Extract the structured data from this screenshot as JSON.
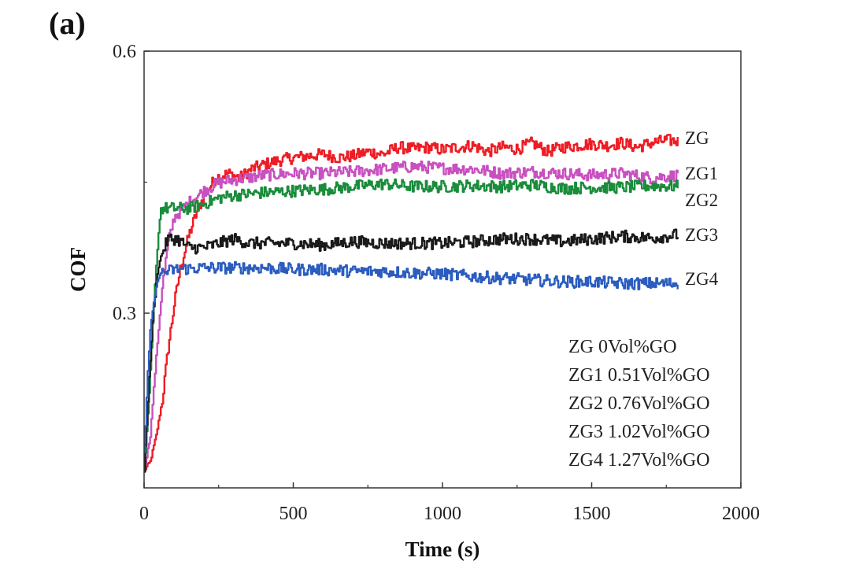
{
  "panel_label": "(a)",
  "chart_data": {
    "type": "line",
    "title": "",
    "xlabel": "Time (s)",
    "ylabel": "COF",
    "xlim": [
      0,
      2000
    ],
    "ylim": [
      0.1,
      0.6
    ],
    "x_ticks": [
      0,
      500,
      1000,
      1500,
      2000
    ],
    "x_tick_labels": [
      "0",
      "500",
      "1000",
      "1500",
      "2000"
    ],
    "y_ticks": [
      0.3,
      0.6
    ],
    "y_tick_labels": [
      "0.3",
      "0.6"
    ],
    "grid": false,
    "series": [
      {
        "name": "ZG",
        "color": "#ee1c24",
        "points": [
          [
            0,
            0.12
          ],
          [
            20,
            0.13
          ],
          [
            40,
            0.16
          ],
          [
            60,
            0.2
          ],
          [
            80,
            0.26
          ],
          [
            100,
            0.31
          ],
          [
            120,
            0.35
          ],
          [
            150,
            0.39
          ],
          [
            180,
            0.42
          ],
          [
            210,
            0.44
          ],
          [
            240,
            0.455
          ],
          [
            280,
            0.46
          ],
          [
            320,
            0.455
          ],
          [
            360,
            0.465
          ],
          [
            400,
            0.47
          ],
          [
            450,
            0.475
          ],
          [
            500,
            0.478
          ],
          [
            550,
            0.48
          ],
          [
            600,
            0.482
          ],
          [
            650,
            0.478
          ],
          [
            700,
            0.48
          ],
          [
            750,
            0.485
          ],
          [
            800,
            0.482
          ],
          [
            850,
            0.49
          ],
          [
            900,
            0.488
          ],
          [
            950,
            0.49
          ],
          [
            1000,
            0.487
          ],
          [
            1050,
            0.49
          ],
          [
            1100,
            0.492
          ],
          [
            1150,
            0.485
          ],
          [
            1200,
            0.49
          ],
          [
            1250,
            0.488
          ],
          [
            1300,
            0.495
          ],
          [
            1350,
            0.485
          ],
          [
            1400,
            0.49
          ],
          [
            1450,
            0.492
          ],
          [
            1500,
            0.494
          ],
          [
            1550,
            0.492
          ],
          [
            1600,
            0.495
          ],
          [
            1650,
            0.49
          ],
          [
            1700,
            0.495
          ],
          [
            1750,
            0.498
          ],
          [
            1790,
            0.497
          ]
        ]
      },
      {
        "name": "ZG1",
        "color": "#c850c0",
        "points": [
          [
            0,
            0.12
          ],
          [
            20,
            0.16
          ],
          [
            40,
            0.25
          ],
          [
            60,
            0.33
          ],
          [
            80,
            0.38
          ],
          [
            100,
            0.41
          ],
          [
            130,
            0.42
          ],
          [
            160,
            0.43
          ],
          [
            200,
            0.44
          ],
          [
            240,
            0.448
          ],
          [
            280,
            0.452
          ],
          [
            350,
            0.455
          ],
          [
            400,
            0.458
          ],
          [
            500,
            0.46
          ],
          [
            600,
            0.46
          ],
          [
            700,
            0.462
          ],
          [
            800,
            0.465
          ],
          [
            900,
            0.468
          ],
          [
            1000,
            0.466
          ],
          [
            1100,
            0.465
          ],
          [
            1200,
            0.46
          ],
          [
            1300,
            0.462
          ],
          [
            1400,
            0.46
          ],
          [
            1500,
            0.458
          ],
          [
            1600,
            0.46
          ],
          [
            1700,
            0.455
          ],
          [
            1790,
            0.458
          ]
        ]
      },
      {
        "name": "ZG2",
        "color": "#1a8c3c",
        "points": [
          [
            0,
            0.12
          ],
          [
            15,
            0.2
          ],
          [
            30,
            0.3
          ],
          [
            45,
            0.38
          ],
          [
            55,
            0.42
          ],
          [
            100,
            0.42
          ],
          [
            150,
            0.42
          ],
          [
            200,
            0.425
          ],
          [
            250,
            0.432
          ],
          [
            300,
            0.435
          ],
          [
            400,
            0.438
          ],
          [
            500,
            0.44
          ],
          [
            600,
            0.442
          ],
          [
            700,
            0.445
          ],
          [
            800,
            0.448
          ],
          [
            900,
            0.445
          ],
          [
            1000,
            0.445
          ],
          [
            1100,
            0.446
          ],
          [
            1200,
            0.445
          ],
          [
            1300,
            0.447
          ],
          [
            1400,
            0.443
          ],
          [
            1500,
            0.444
          ],
          [
            1600,
            0.444
          ],
          [
            1700,
            0.446
          ],
          [
            1790,
            0.445
          ]
        ]
      },
      {
        "name": "ZG3",
        "color": "#1a1a1a",
        "points": [
          [
            0,
            0.12
          ],
          [
            15,
            0.22
          ],
          [
            30,
            0.3
          ],
          [
            45,
            0.35
          ],
          [
            60,
            0.37
          ],
          [
            80,
            0.385
          ],
          [
            110,
            0.385
          ],
          [
            150,
            0.375
          ],
          [
            200,
            0.375
          ],
          [
            250,
            0.38
          ],
          [
            300,
            0.385
          ],
          [
            350,
            0.38
          ],
          [
            400,
            0.38
          ],
          [
            500,
            0.38
          ],
          [
            600,
            0.378
          ],
          [
            700,
            0.382
          ],
          [
            800,
            0.38
          ],
          [
            900,
            0.38
          ],
          [
            1000,
            0.38
          ],
          [
            1100,
            0.382
          ],
          [
            1200,
            0.385
          ],
          [
            1300,
            0.385
          ],
          [
            1400,
            0.382
          ],
          [
            1500,
            0.385
          ],
          [
            1600,
            0.388
          ],
          [
            1700,
            0.386
          ],
          [
            1790,
            0.39
          ]
        ]
      },
      {
        "name": "ZG4",
        "color": "#2b5dbf",
        "points": [
          [
            0,
            0.14
          ],
          [
            10,
            0.22
          ],
          [
            20,
            0.28
          ],
          [
            35,
            0.32
          ],
          [
            50,
            0.345
          ],
          [
            100,
            0.35
          ],
          [
            200,
            0.352
          ],
          [
            300,
            0.352
          ],
          [
            400,
            0.352
          ],
          [
            500,
            0.35
          ],
          [
            600,
            0.35
          ],
          [
            700,
            0.348
          ],
          [
            800,
            0.348
          ],
          [
            900,
            0.346
          ],
          [
            1000,
            0.345
          ],
          [
            1100,
            0.342
          ],
          [
            1200,
            0.34
          ],
          [
            1300,
            0.338
          ],
          [
            1400,
            0.336
          ],
          [
            1500,
            0.336
          ],
          [
            1600,
            0.334
          ],
          [
            1700,
            0.334
          ],
          [
            1790,
            0.334
          ]
        ]
      }
    ],
    "series_labels": [
      "ZG",
      "ZG1",
      "ZG2",
      "ZG3",
      "ZG4"
    ],
    "legend_placement": "bottom-right",
    "legend_entries": [
      "ZG 0Vol%GO",
      "ZG1 0.51Vol%GO",
      "ZG2 0.76Vol%GO",
      "ZG3 1.02Vol%GO",
      "ZG4 1.27Vol%GO"
    ]
  }
}
